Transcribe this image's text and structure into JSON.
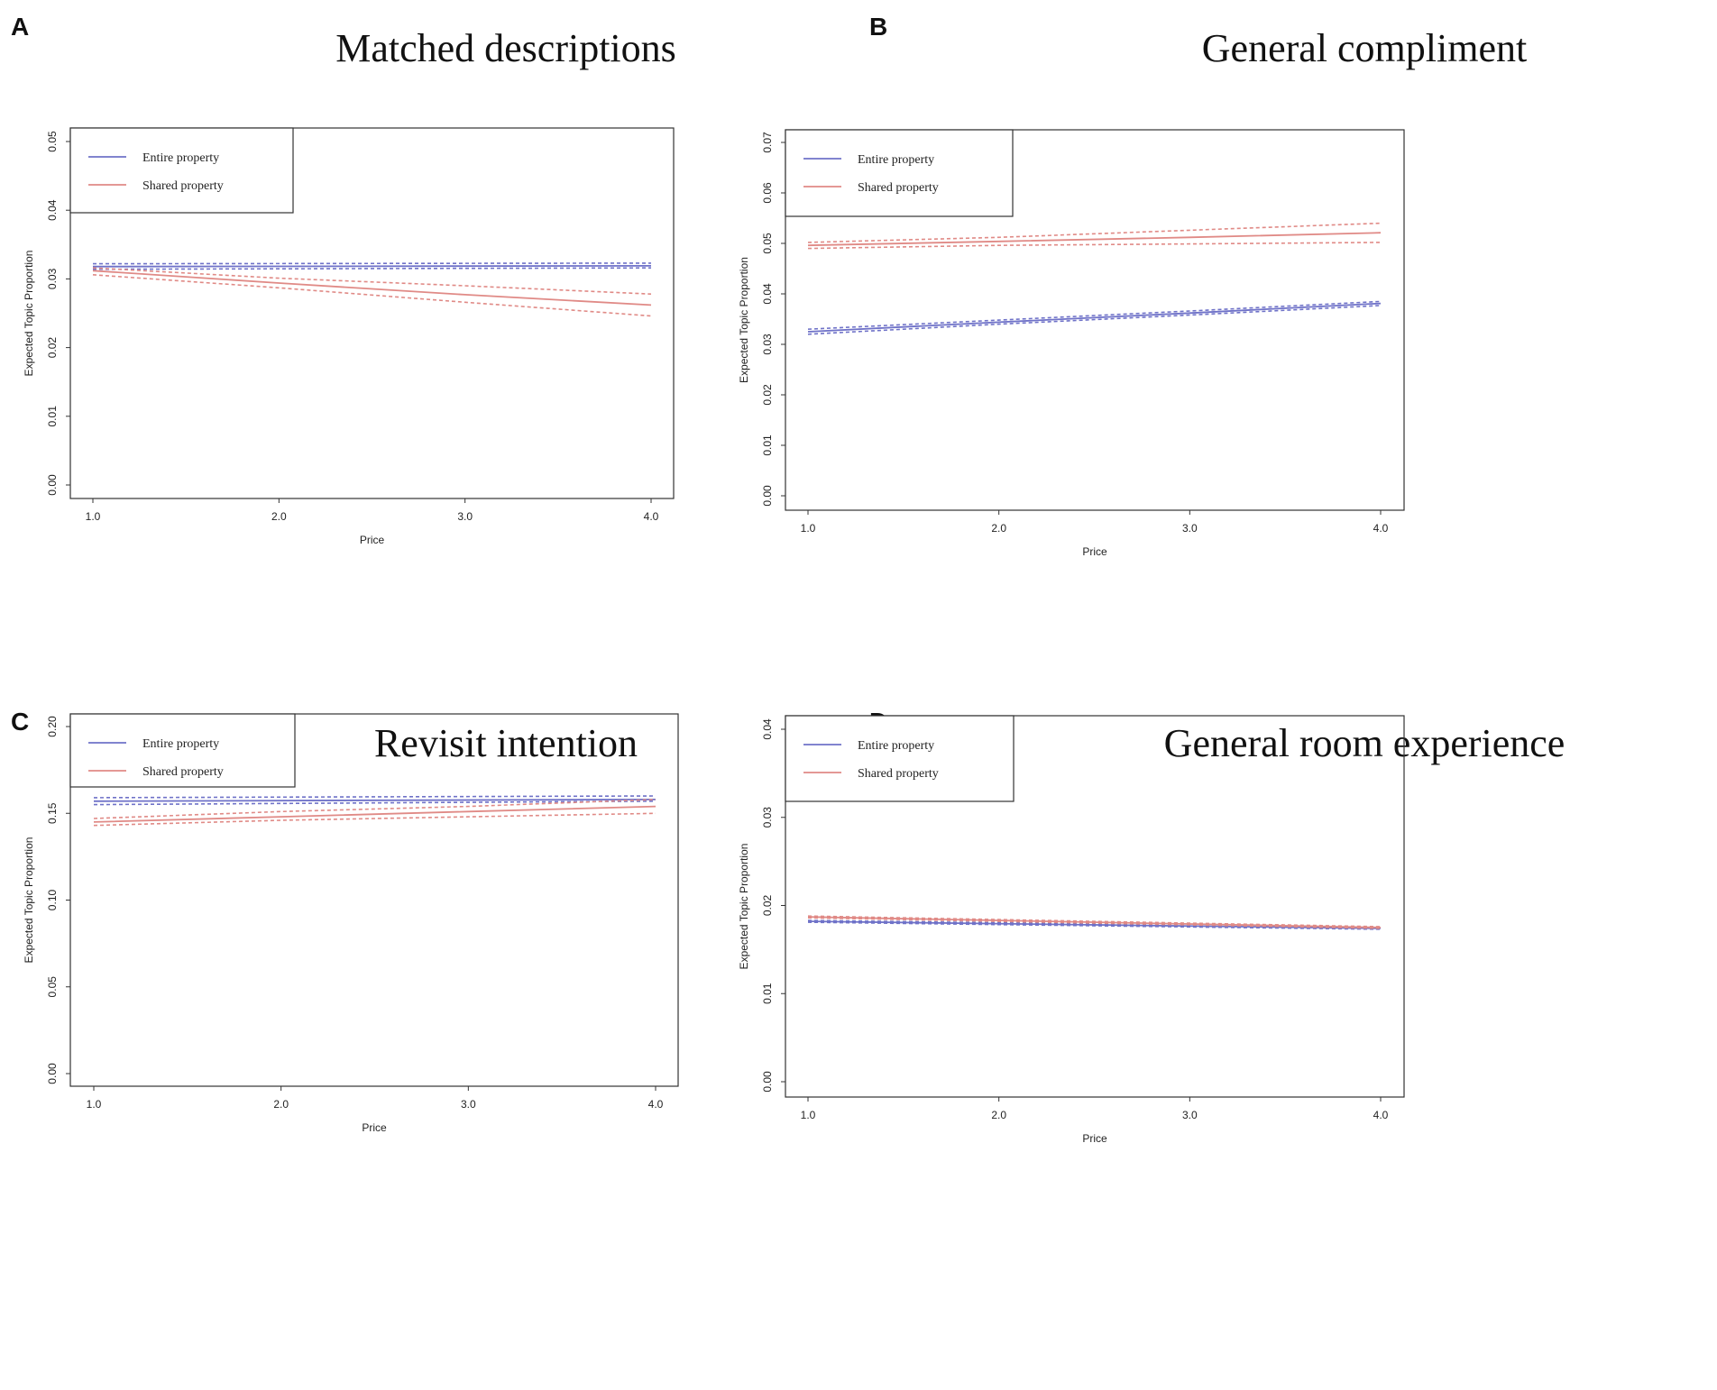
{
  "colors": {
    "entire": "#6f72c8",
    "shared": "#e08a86",
    "frame": "#333333"
  },
  "chart_data": [
    {
      "id": "a",
      "type": "line",
      "letter": "A",
      "title": "Matched descriptions",
      "xlabel": "Price",
      "ylabel": "Expected Topic Proportion",
      "xlim": [
        1.0,
        4.0
      ],
      "ylim": [
        0.0,
        0.05
      ],
      "xticks": [
        "1.0",
        "2.0",
        "3.0",
        "4.0"
      ],
      "xtick_values": [
        1.0,
        2.0,
        3.0,
        4.0
      ],
      "yticks": [
        "0.00",
        "0.01",
        "0.02",
        "0.03",
        "0.04",
        "0.05"
      ],
      "ytick_values": [
        0.0,
        0.01,
        0.02,
        0.03,
        0.04,
        0.05
      ],
      "legend": [
        "Entire property",
        "Shared property"
      ],
      "series": [
        {
          "name": "Entire property",
          "x": [
            1.0,
            4.0
          ],
          "y": [
            0.0318,
            0.0319
          ],
          "lower": [
            0.0314,
            0.0316
          ],
          "upper": [
            0.0322,
            0.0323
          ]
        },
        {
          "name": "Shared property",
          "x": [
            1.0,
            2.0,
            3.0,
            4.0
          ],
          "y": [
            0.0312,
            0.0294,
            0.0277,
            0.0262
          ],
          "lower": [
            0.0306,
            0.0287,
            0.0266,
            0.0246
          ],
          "upper": [
            0.0316,
            0.0301,
            0.029,
            0.0278
          ]
        }
      ]
    },
    {
      "id": "b",
      "type": "line",
      "letter": "B",
      "title": "General compliment",
      "xlabel": "Price",
      "ylabel": "Expected Topic Proportion",
      "xlim": [
        1.0,
        4.0
      ],
      "ylim": [
        0.0,
        0.07
      ],
      "xticks": [
        "1.0",
        "2.0",
        "3.0",
        "4.0"
      ],
      "xtick_values": [
        1.0,
        2.0,
        3.0,
        4.0
      ],
      "yticks": [
        "0.00",
        "0.01",
        "0.02",
        "0.03",
        "0.04",
        "0.05",
        "0.06",
        "0.07"
      ],
      "ytick_values": [
        0.0,
        0.01,
        0.02,
        0.03,
        0.04,
        0.05,
        0.06,
        0.07
      ],
      "legend": [
        "Entire property",
        "Shared property"
      ],
      "series": [
        {
          "name": "Entire property",
          "x": [
            1.0,
            2.0,
            3.0,
            4.0
          ],
          "y": [
            0.0325,
            0.0344,
            0.0362,
            0.0381
          ],
          "lower": [
            0.032,
            0.034,
            0.0358,
            0.0377
          ],
          "upper": [
            0.033,
            0.0348,
            0.0366,
            0.0385
          ]
        },
        {
          "name": "Shared property",
          "x": [
            1.0,
            2.0,
            3.0,
            4.0
          ],
          "y": [
            0.0496,
            0.0504,
            0.0512,
            0.0521
          ],
          "lower": [
            0.049,
            0.0496,
            0.0499,
            0.0502
          ],
          "upper": [
            0.0502,
            0.0512,
            0.0526,
            0.054
          ]
        }
      ]
    },
    {
      "id": "c",
      "type": "line",
      "letter": "C",
      "title": "Revisit intention",
      "xlabel": "Price",
      "ylabel": "Expected Topic Proportion",
      "xlim": [
        1.0,
        4.0
      ],
      "ylim": [
        0.0,
        0.2
      ],
      "xticks": [
        "1.0",
        "2.0",
        "3.0",
        "4.0"
      ],
      "xtick_values": [
        1.0,
        2.0,
        3.0,
        4.0
      ],
      "yticks": [
        "0.00",
        "0.05",
        "0.10",
        "0.15",
        "0.20"
      ],
      "ytick_values": [
        0.0,
        0.05,
        0.1,
        0.15,
        0.2
      ],
      "legend": [
        "Entire property",
        "Shared property"
      ],
      "series": [
        {
          "name": "Entire property",
          "x": [
            1.0,
            4.0
          ],
          "y": [
            0.157,
            0.158
          ],
          "lower": [
            0.155,
            0.157
          ],
          "upper": [
            0.159,
            0.16
          ]
        },
        {
          "name": "Shared property",
          "x": [
            1.0,
            2.0,
            3.0,
            4.0
          ],
          "y": [
            0.145,
            0.148,
            0.151,
            0.154
          ],
          "lower": [
            0.143,
            0.146,
            0.148,
            0.15
          ],
          "upper": [
            0.147,
            0.151,
            0.154,
            0.158
          ]
        }
      ]
    },
    {
      "id": "d",
      "type": "line",
      "letter": "D",
      "title": "General room experience",
      "xlabel": "Price",
      "ylabel": "Expected Topic Proportion",
      "xlim": [
        1.0,
        4.0
      ],
      "ylim": [
        0.0,
        0.04
      ],
      "xticks": [
        "1.0",
        "2.0",
        "3.0",
        "4.0"
      ],
      "xtick_values": [
        1.0,
        2.0,
        3.0,
        4.0
      ],
      "yticks": [
        "0.00",
        "0.01",
        "0.02",
        "0.03",
        "0.04"
      ],
      "ytick_values": [
        0.0,
        0.01,
        0.02,
        0.03,
        0.04
      ],
      "legend": [
        "Entire property",
        "Shared property"
      ],
      "series": [
        {
          "name": "Entire property",
          "x": [
            1.0,
            4.0
          ],
          "y": [
            0.0182,
            0.0174
          ],
          "lower": [
            0.0181,
            0.0173
          ],
          "upper": [
            0.0183,
            0.0175
          ]
        },
        {
          "name": "Shared property",
          "x": [
            1.0,
            4.0
          ],
          "y": [
            0.0187,
            0.0175
          ],
          "lower": [
            0.0186,
            0.0174
          ],
          "upper": [
            0.0188,
            0.0176
          ]
        }
      ]
    }
  ]
}
